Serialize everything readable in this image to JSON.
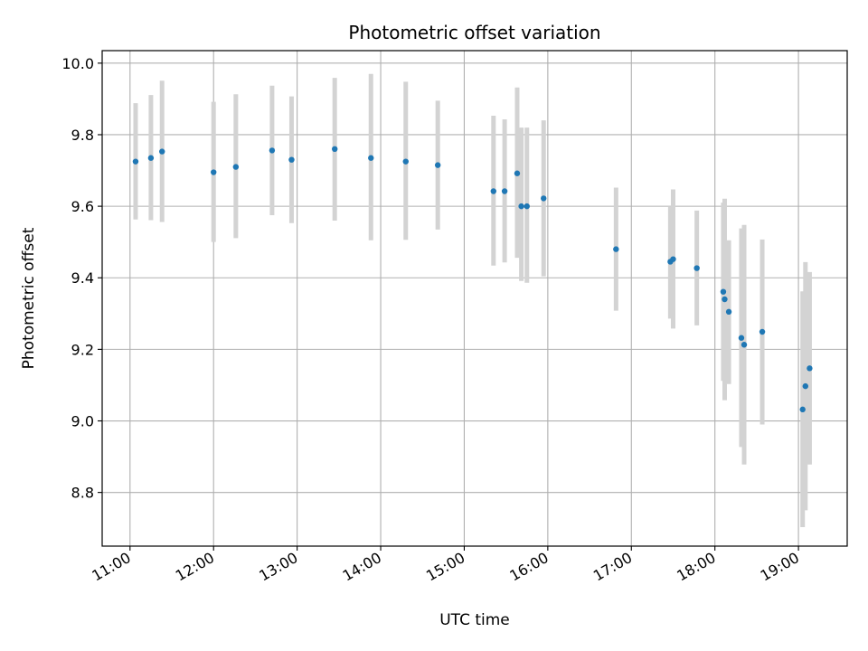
{
  "chart_data": {
    "type": "scatter",
    "title": "Photometric offset variation",
    "xlabel": "UTC time",
    "ylabel": "Photometric offset",
    "x_tick_labels": [
      "11:00",
      "12:00",
      "13:00",
      "14:00",
      "15:00",
      "16:00",
      "17:00",
      "18:00",
      "19:00"
    ],
    "y_tick_labels": [
      "8.8",
      "9.0",
      "9.2",
      "9.4",
      "9.6",
      "9.8",
      "10.0"
    ],
    "ylim": [
      8.65,
      10.035
    ],
    "xlim": [
      "10:40",
      "19:35"
    ],
    "grid": true,
    "colors": {
      "point": "#1f77b4",
      "errorbar": "#d3d3d3",
      "grid": "#b0b0b0"
    },
    "series": [
      {
        "points": [
          {
            "x": "11:04",
            "y": 9.725,
            "low": 9.563,
            "high": 9.888
          },
          {
            "x": "11:15",
            "y": 9.735,
            "low": 9.561,
            "high": 9.911
          },
          {
            "x": "11:23",
            "y": 9.753,
            "low": 9.556,
            "high": 9.951
          },
          {
            "x": "12:00",
            "y": 9.695,
            "low": 9.5,
            "high": 9.892
          },
          {
            "x": "12:16",
            "y": 9.71,
            "low": 9.511,
            "high": 9.913
          },
          {
            "x": "12:42",
            "y": 9.756,
            "low": 9.575,
            "high": 9.937
          },
          {
            "x": "12:56",
            "y": 9.73,
            "low": 9.553,
            "high": 9.907
          },
          {
            "x": "13:27",
            "y": 9.76,
            "low": 9.56,
            "high": 9.959
          },
          {
            "x": "13:53",
            "y": 9.735,
            "low": 9.505,
            "high": 9.97
          },
          {
            "x": "14:18",
            "y": 9.725,
            "low": 9.506,
            "high": 9.948
          },
          {
            "x": "14:41",
            "y": 9.715,
            "low": 9.535,
            "high": 9.895
          },
          {
            "x": "15:21",
            "y": 9.642,
            "low": 9.434,
            "high": 9.853
          },
          {
            "x": "15:29",
            "y": 9.642,
            "low": 9.443,
            "high": 9.843
          },
          {
            "x": "15:38",
            "y": 9.692,
            "low": 9.456,
            "high": 9.932
          },
          {
            "x": "15:41",
            "y": 9.6,
            "low": 9.391,
            "high": 9.82
          },
          {
            "x": "15:45",
            "y": 9.6,
            "low": 9.386,
            "high": 9.82
          },
          {
            "x": "15:57",
            "y": 9.622,
            "low": 9.404,
            "high": 9.84
          },
          {
            "x": "16:49",
            "y": 9.48,
            "low": 9.308,
            "high": 9.652
          },
          {
            "x": "17:28",
            "y": 9.445,
            "low": 9.286,
            "high": 9.6
          },
          {
            "x": "17:30",
            "y": 9.452,
            "low": 9.258,
            "high": 9.647
          },
          {
            "x": "17:47",
            "y": 9.427,
            "low": 9.267,
            "high": 9.588
          },
          {
            "x": "18:06",
            "y": 9.361,
            "low": 9.112,
            "high": 9.61
          },
          {
            "x": "18:07",
            "y": 9.34,
            "low": 9.058,
            "high": 9.621
          },
          {
            "x": "18:10",
            "y": 9.305,
            "low": 9.103,
            "high": 9.505
          },
          {
            "x": "18:19",
            "y": 9.232,
            "low": 8.927,
            "high": 9.538
          },
          {
            "x": "18:21",
            "y": 9.213,
            "low": 8.878,
            "high": 9.548
          },
          {
            "x": "18:34",
            "y": 9.249,
            "low": 8.99,
            "high": 9.507
          },
          {
            "x": "19:03",
            "y": 9.032,
            "low": 8.703,
            "high": 9.362
          },
          {
            "x": "19:05",
            "y": 9.097,
            "low": 8.75,
            "high": 9.444
          },
          {
            "x": "19:08",
            "y": 9.147,
            "low": 8.878,
            "high": 9.416
          }
        ]
      }
    ]
  }
}
